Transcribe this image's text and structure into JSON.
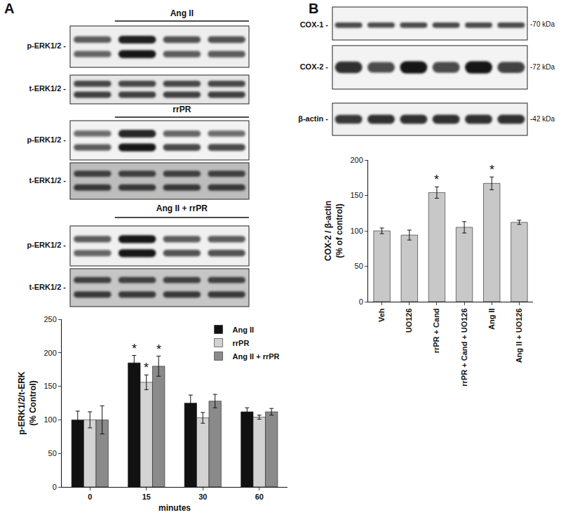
{
  "panel_labels": [
    "A",
    "B"
  ],
  "blots": {
    "A": [
      {
        "header": "Ang II",
        "rows": [
          "p-ERK1/2 -",
          "t-ERK1/2 -"
        ]
      },
      {
        "header": "rrPR",
        "rows": [
          "p-ERK1/2 -",
          "t-ERK1/2 -"
        ]
      },
      {
        "header": "Ang II + rrPR",
        "rows": [
          "p-ERK1/2 -",
          "t-ERK1/2 -"
        ]
      }
    ],
    "B": {
      "rows": [
        {
          "label": "COX-1 -",
          "size": "-70 kDa"
        },
        {
          "label": "COX-2 -",
          "size": "-72 kDa"
        },
        {
          "label": "β-actin -",
          "size": "-42 kDa"
        }
      ]
    }
  },
  "chart_data": [
    {
      "type": "bar",
      "x_label": "minutes",
      "y_label": [
        "p-ERK1/2/t-ERK",
        "(% Control)"
      ],
      "categories": [
        "0",
        "15",
        "30",
        "60"
      ],
      "series": [
        {
          "name": "Ang II",
          "color": "#111111",
          "values": [
            100,
            185,
            125,
            112
          ],
          "errors": [
            13,
            11,
            12,
            6
          ]
        },
        {
          "name": "rrPR",
          "color": "#d3d3d3",
          "values": [
            100,
            156,
            103,
            104
          ],
          "errors": [
            12,
            11,
            8,
            3
          ]
        },
        {
          "name": "Ang II + rrPR",
          "color": "#8a8a8a",
          "values": [
            100,
            180,
            128,
            112
          ],
          "errors": [
            21,
            15,
            10,
            5
          ]
        }
      ],
      "annotations": [
        {
          "category": "15",
          "series": "Ang II",
          "text": "*"
        },
        {
          "category": "15",
          "series": "rrPR",
          "text": "*"
        },
        {
          "category": "15",
          "series": "Ang II + rrPR",
          "text": "*"
        }
      ],
      "ylim": [
        0,
        250
      ],
      "yticks": [
        0,
        50,
        100,
        150,
        200,
        250
      ],
      "grid": false,
      "legend": "upper right"
    },
    {
      "type": "bar",
      "y_label": [
        "COX-2 / β-actin",
        "(% of control)"
      ],
      "categories": [
        "Veh",
        "UO126",
        "rrPR + Cand",
        "rrPR + Cand + UO126",
        "Ang II",
        "Ang II + UO126"
      ],
      "values": [
        100,
        94,
        154,
        105,
        167,
        112
      ],
      "errors": [
        4,
        7,
        8,
        8,
        9,
        3
      ],
      "color": "#c8c8c8",
      "annotations": [
        {
          "category": "rrPR + Cand",
          "text": "*"
        },
        {
          "category": "Ang II",
          "text": "*"
        }
      ],
      "ylim": [
        0,
        200
      ],
      "yticks": [
        0,
        50,
        100,
        150,
        200
      ],
      "grid": false
    }
  ]
}
